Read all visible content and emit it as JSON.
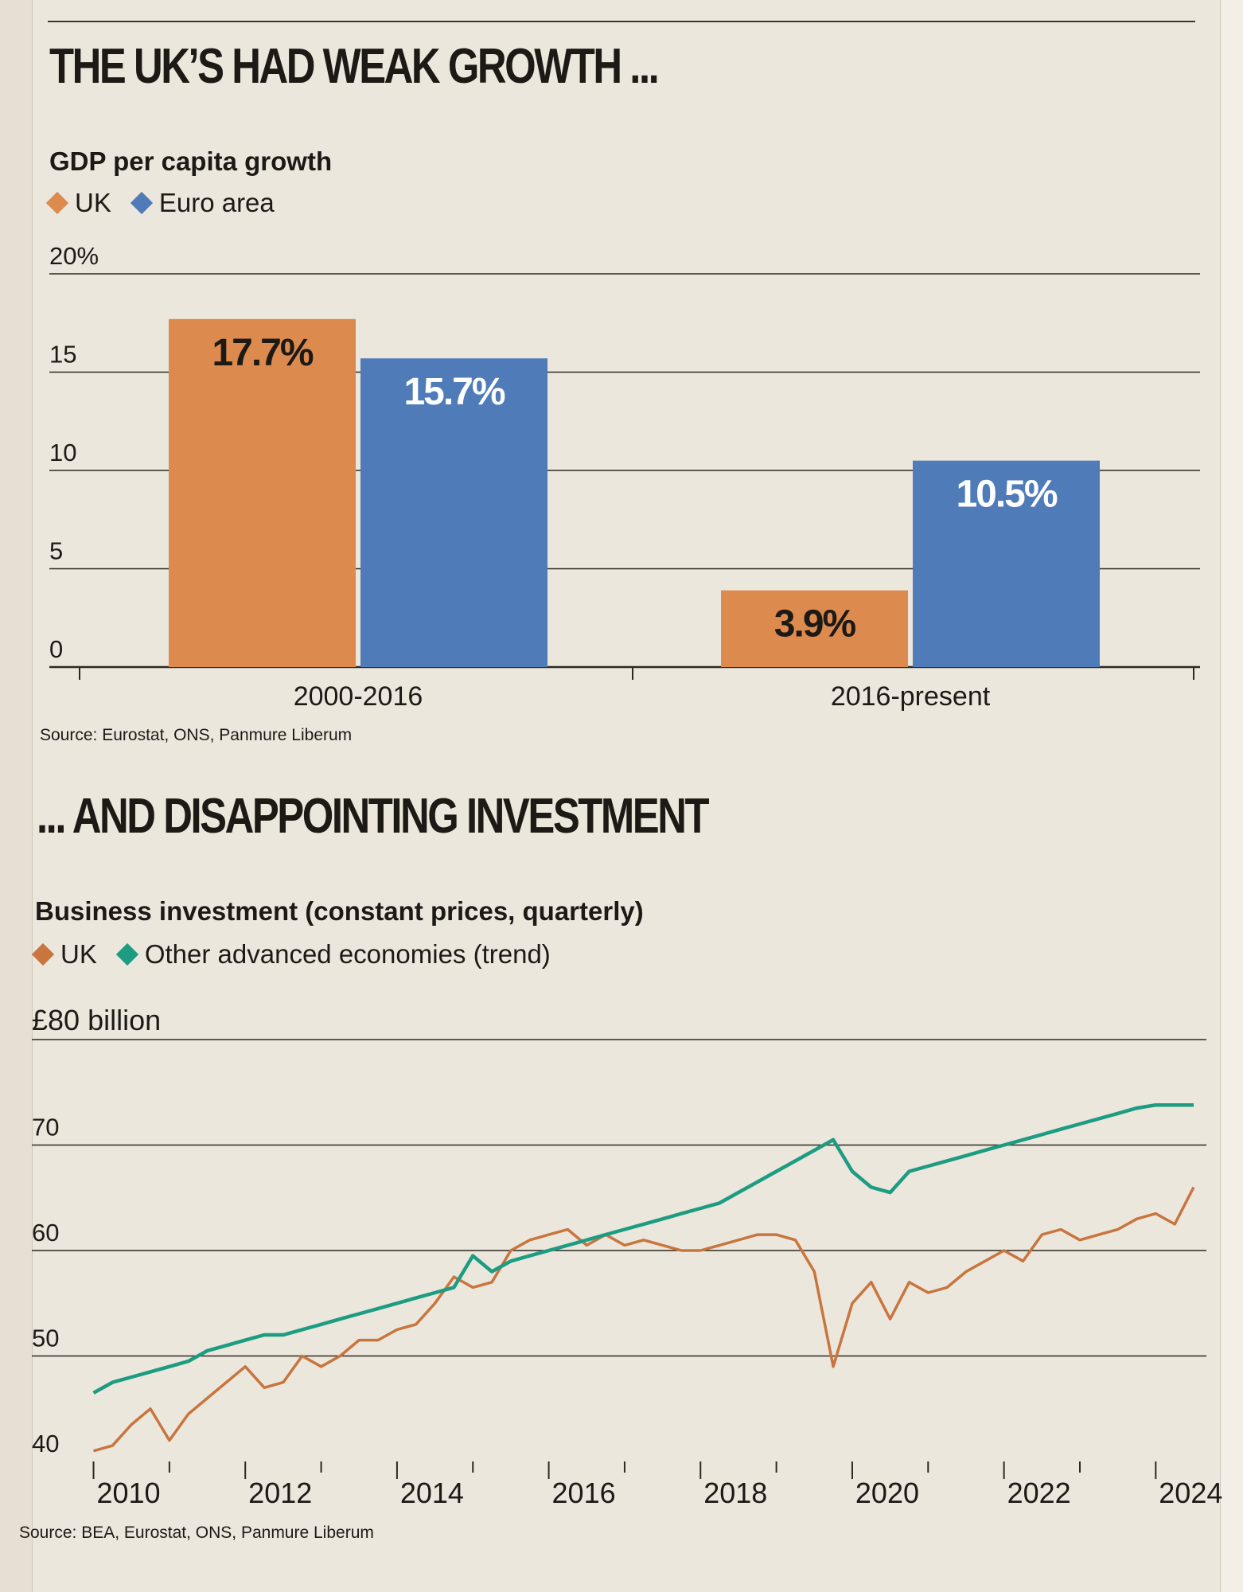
{
  "headline1": "THE UK’S HAD WEAK GROWTH ...",
  "headline2": "... AND DISAPPOINTING INVESTMENT",
  "colors": {
    "uk_bar": "#dd8a4f",
    "euro_bar": "#4f7bb8",
    "uk_line": "#c8753e",
    "other_line": "#1e9c82",
    "ink": "#1d1a16"
  },
  "chart_data": [
    {
      "type": "bar",
      "title": "GDP per capita growth",
      "legend": [
        "UK",
        "Euro area"
      ],
      "categories": [
        "2000-2016",
        "2016-present"
      ],
      "series": [
        {
          "name": "UK",
          "values": [
            17.7,
            3.9
          ],
          "labels": [
            "17.7%",
            "3.9%"
          ]
        },
        {
          "name": "Euro area",
          "values": [
            15.7,
            10.5
          ],
          "labels": [
            "15.7%",
            "10.5%"
          ]
        }
      ],
      "ylim": [
        0,
        20
      ],
      "yticks": [
        0,
        5,
        10,
        15,
        20
      ],
      "ytick_labels": [
        "0",
        "5",
        "10",
        "15",
        "20%"
      ],
      "source": "Source: Eurostat, ONS, Panmure Liberum"
    },
    {
      "type": "line",
      "title": "Business investment (constant prices, quarterly)",
      "legend": [
        "UK",
        "Other advanced economies (trend)"
      ],
      "ylim": [
        40,
        80
      ],
      "yticks": [
        40,
        50,
        60,
        70,
        80
      ],
      "ytick_labels": [
        "40",
        "50",
        "60",
        "70",
        "£80 billion"
      ],
      "xlim": [
        2009.9,
        2024.5
      ],
      "xticks": [
        2010,
        2012,
        2014,
        2016,
        2018,
        2020,
        2022,
        2024
      ],
      "xtick_labels": [
        "2010",
        "2012",
        "2014",
        "2016",
        "2018",
        "2020",
        "2022",
        "2024"
      ],
      "series": [
        {
          "name": "UK",
          "x": [
            2010.0,
            2010.25,
            2010.5,
            2010.75,
            2011.0,
            2011.25,
            2011.5,
            2011.75,
            2012.0,
            2012.25,
            2012.5,
            2012.75,
            2013.0,
            2013.25,
            2013.5,
            2013.75,
            2014.0,
            2014.25,
            2014.5,
            2014.75,
            2015.0,
            2015.25,
            2015.5,
            2015.75,
            2016.0,
            2016.25,
            2016.5,
            2016.75,
            2017.0,
            2017.25,
            2017.5,
            2017.75,
            2018.0,
            2018.25,
            2018.5,
            2018.75,
            2019.0,
            2019.25,
            2019.5,
            2019.75,
            2020.0,
            2020.25,
            2020.5,
            2020.75,
            2021.0,
            2021.25,
            2021.5,
            2021.75,
            2022.0,
            2022.25,
            2022.5,
            2022.75,
            2023.0,
            2023.25,
            2023.5,
            2023.75,
            2024.0,
            2024.25,
            2024.5
          ],
          "values": [
            41.0,
            41.5,
            43.5,
            45.0,
            42.0,
            44.5,
            46.0,
            47.5,
            49.0,
            47.0,
            47.5,
            50.0,
            49.0,
            50.0,
            51.5,
            51.5,
            52.5,
            53.0,
            55.0,
            57.5,
            56.5,
            57.0,
            60.0,
            61.0,
            61.5,
            62.0,
            60.5,
            61.5,
            60.5,
            61.0,
            60.5,
            60.0,
            60.0,
            60.5,
            61.0,
            61.5,
            61.5,
            61.0,
            58.0,
            49.0,
            55.0,
            57.0,
            53.5,
            57.0,
            56.0,
            56.5,
            58.0,
            59.0,
            60.0,
            59.0,
            61.5,
            62.0,
            61.0,
            61.5,
            62.0,
            63.0,
            63.5,
            62.5,
            66.0
          ]
        },
        {
          "name": "Other advanced economies (trend)",
          "x": [
            2010.0,
            2010.25,
            2010.5,
            2010.75,
            2011.0,
            2011.25,
            2011.5,
            2011.75,
            2012.0,
            2012.25,
            2012.5,
            2012.75,
            2013.0,
            2013.25,
            2013.5,
            2013.75,
            2014.0,
            2014.25,
            2014.5,
            2014.75,
            2015.0,
            2015.25,
            2015.5,
            2015.75,
            2016.0,
            2016.25,
            2016.5,
            2016.75,
            2017.0,
            2017.25,
            2017.5,
            2017.75,
            2018.0,
            2018.25,
            2018.5,
            2018.75,
            2019.0,
            2019.25,
            2019.5,
            2019.75,
            2020.0,
            2020.25,
            2020.5,
            2020.75,
            2021.0,
            2021.25,
            2021.5,
            2021.75,
            2022.0,
            2022.25,
            2022.5,
            2022.75,
            2023.0,
            2023.25,
            2023.5,
            2023.75,
            2024.0,
            2024.25,
            2024.5
          ],
          "values": [
            46.5,
            47.5,
            48.0,
            48.5,
            49.0,
            49.5,
            50.5,
            51.0,
            51.5,
            52.0,
            52.0,
            52.5,
            53.0,
            53.5,
            54.0,
            54.5,
            55.0,
            55.5,
            56.0,
            56.5,
            59.5,
            58.0,
            59.0,
            59.5,
            60.0,
            60.5,
            61.0,
            61.5,
            62.0,
            62.5,
            63.0,
            63.5,
            64.0,
            64.5,
            65.5,
            66.5,
            67.5,
            68.5,
            69.5,
            70.5,
            67.5,
            66.0,
            65.5,
            67.5,
            68.0,
            68.5,
            69.0,
            69.5,
            70.0,
            70.5,
            71.0,
            71.5,
            72.0,
            72.5,
            73.0,
            73.5,
            73.8,
            73.8,
            73.8
          ]
        }
      ],
      "source": "Source: BEA, Eurostat, ONS, Panmure Liberum"
    }
  ]
}
